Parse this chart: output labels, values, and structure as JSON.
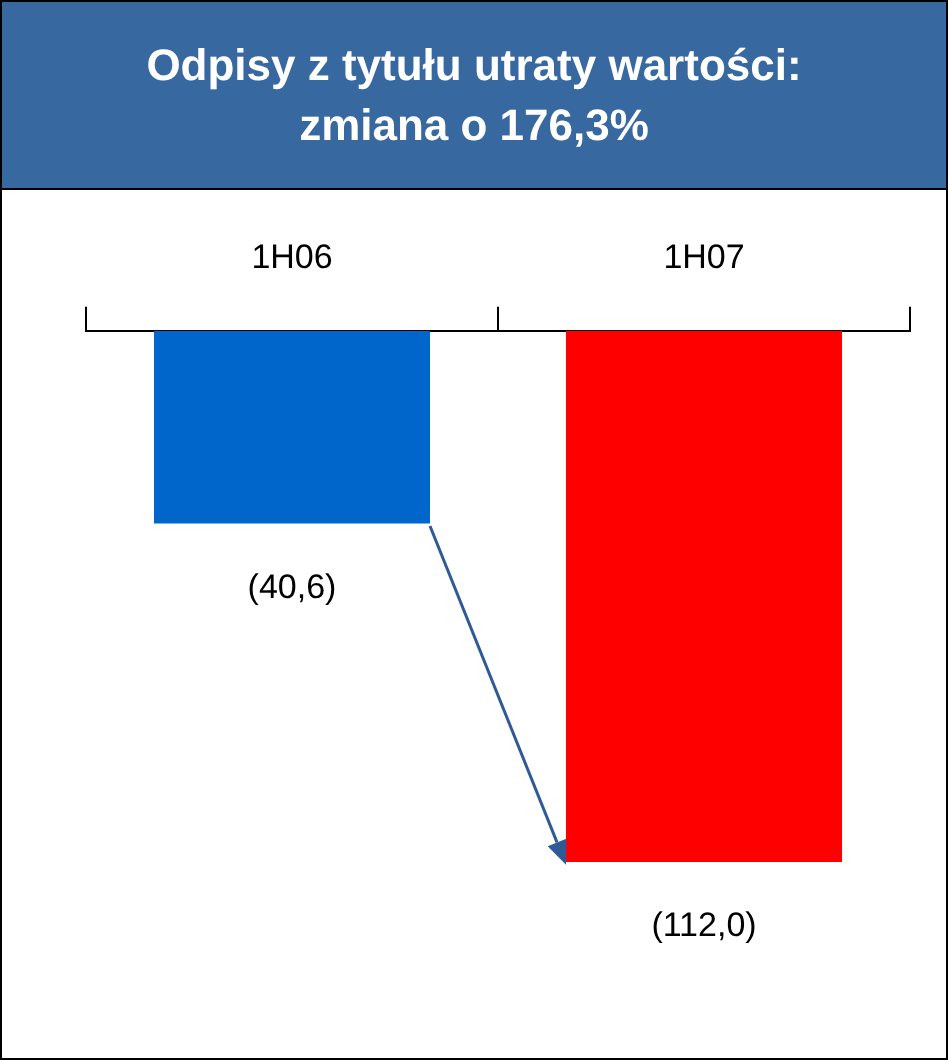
{
  "chart_data": {
    "type": "bar",
    "title": "Odpisy z tytułu utraty wartości: zmiana o 176,3%",
    "categories": [
      "1H06",
      "1H07"
    ],
    "values": [
      -40.6,
      -112.0
    ],
    "colors": [
      "#0066cc",
      "#ff0000"
    ],
    "value_labels": [
      "(40,6)",
      "(112,0)"
    ],
    "tick_labels": "x"
  }
}
